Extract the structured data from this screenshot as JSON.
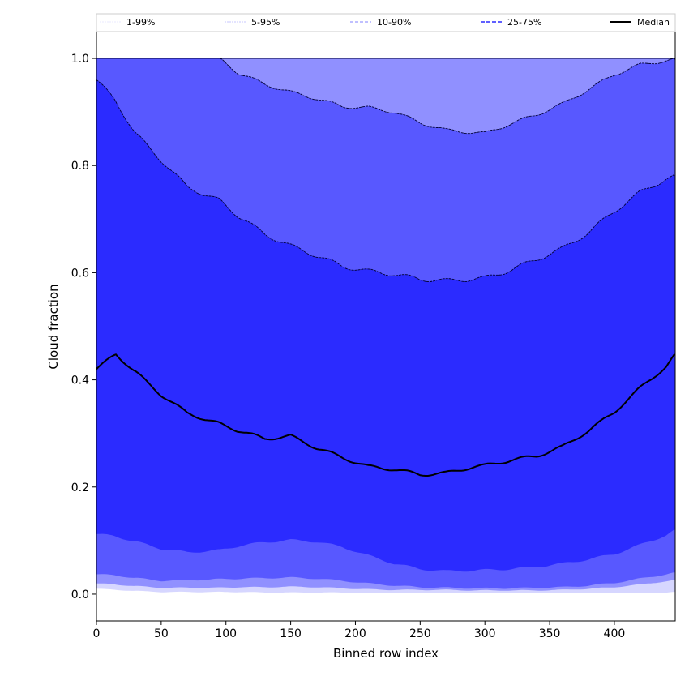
{
  "chart_data": {
    "type": "area",
    "title": "",
    "xlabel": "Binned row index",
    "ylabel": "Cloud fraction",
    "xlim": [
      0,
      447
    ],
    "ylim": [
      -0.05,
      1.05
    ],
    "x_ticks": [
      "0",
      "50",
      "100",
      "150",
      "200",
      "250",
      "300",
      "350",
      "400"
    ],
    "y_ticks": [
      "0.0",
      "0.2",
      "0.4",
      "0.6",
      "0.8",
      "1.0"
    ],
    "legend_position": "top",
    "x": [
      0,
      15,
      30,
      50,
      70,
      95,
      110,
      130,
      150,
      170,
      190,
      210,
      230,
      250,
      270,
      290,
      300,
      320,
      340,
      360,
      380,
      400,
      420,
      440,
      447
    ],
    "series": [
      {
        "name": "1-99%",
        "color": "#d6d6ff",
        "lower": [
          0.01,
          0.008,
          0.006,
          0.004,
          0.004,
          0.004,
          0.004,
          0.003,
          0.003,
          0.003,
          0.003,
          0.002,
          0.002,
          0.002,
          0.002,
          0.002,
          0.002,
          0.002,
          0.002,
          0.002,
          0.002,
          0.002,
          0.002,
          0.003,
          0.004
        ],
        "upper": [
          1.0,
          1.0,
          1.0,
          1.0,
          1.0,
          1.0,
          1.0,
          1.0,
          1.0,
          1.0,
          1.0,
          1.0,
          1.0,
          1.0,
          1.0,
          1.0,
          1.0,
          1.0,
          1.0,
          1.0,
          1.0,
          1.0,
          1.0,
          1.0,
          1.0
        ]
      },
      {
        "name": "5-95%",
        "color": "#9090ff",
        "lower": [
          0.02,
          0.018,
          0.015,
          0.012,
          0.012,
          0.012,
          0.013,
          0.013,
          0.014,
          0.013,
          0.011,
          0.009,
          0.008,
          0.008,
          0.008,
          0.007,
          0.007,
          0.007,
          0.007,
          0.008,
          0.01,
          0.013,
          0.018,
          0.024,
          0.026
        ],
        "upper": [
          1.0,
          1.0,
          1.0,
          1.0,
          1.0,
          1.0,
          1.0,
          1.0,
          1.0,
          1.0,
          1.0,
          1.0,
          1.0,
          1.0,
          1.0,
          1.0,
          1.0,
          1.0,
          1.0,
          1.0,
          1.0,
          1.0,
          1.0,
          1.0,
          1.0
        ]
      },
      {
        "name": "10-90%",
        "color": "#5858ff",
        "lower": [
          0.037,
          0.035,
          0.03,
          0.025,
          0.026,
          0.028,
          0.029,
          0.03,
          0.031,
          0.029,
          0.025,
          0.02,
          0.016,
          0.013,
          0.012,
          0.011,
          0.011,
          0.011,
          0.012,
          0.013,
          0.016,
          0.021,
          0.029,
          0.037,
          0.04
        ],
        "upper": [
          1.0,
          1.0,
          1.0,
          1.0,
          1.0,
          1.0,
          0.972,
          0.952,
          0.937,
          0.925,
          0.91,
          0.908,
          0.9,
          0.88,
          0.866,
          0.862,
          0.86,
          0.878,
          0.895,
          0.915,
          0.942,
          0.97,
          0.988,
          0.996,
          0.998
        ]
      },
      {
        "name": "25-75%",
        "color": "#2b2bff",
        "lower": [
          0.112,
          0.108,
          0.098,
          0.085,
          0.078,
          0.082,
          0.09,
          0.097,
          0.101,
          0.098,
          0.088,
          0.072,
          0.057,
          0.047,
          0.043,
          0.044,
          0.045,
          0.047,
          0.051,
          0.057,
          0.065,
          0.075,
          0.092,
          0.11,
          0.12
        ]
      },
      {
        "name": "Median",
        "color": "#000000",
        "values": [
          0.42,
          0.448,
          0.415,
          0.372,
          0.338,
          0.318,
          0.305,
          0.29,
          0.295,
          0.273,
          0.255,
          0.238,
          0.233,
          0.223,
          0.226,
          0.237,
          0.24,
          0.25,
          0.258,
          0.275,
          0.305,
          0.34,
          0.385,
          0.425,
          0.447
        ]
      }
    ],
    "band_75_upper": [
      0.96,
      0.92,
      0.86,
      0.81,
      0.76,
      0.735,
      0.705,
      0.672,
      0.65,
      0.632,
      0.612,
      0.603,
      0.597,
      0.588,
      0.585,
      0.588,
      0.59,
      0.605,
      0.625,
      0.645,
      0.675,
      0.715,
      0.75,
      0.775,
      0.78
    ]
  }
}
